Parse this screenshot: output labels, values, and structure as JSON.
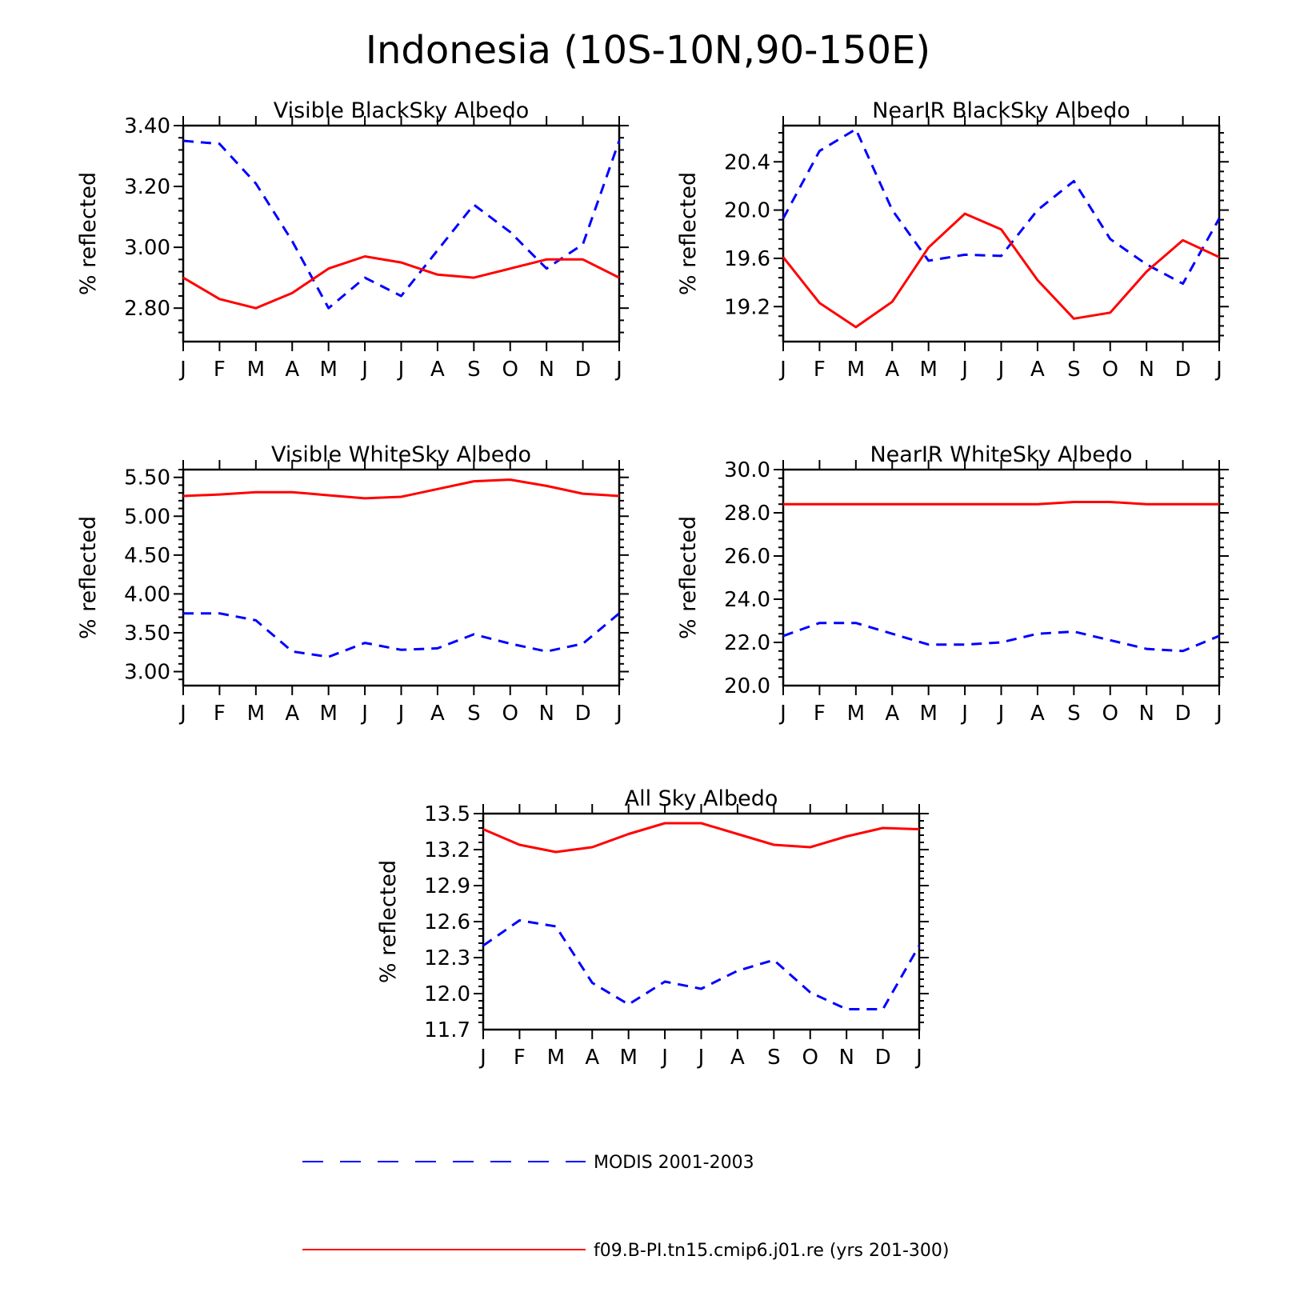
{
  "title": "Indonesia (10S-10N,90-150E)",
  "colors": {
    "modis": "#0000ff",
    "model": "#ff0000",
    "axis": "#000000"
  },
  "months": [
    "J",
    "F",
    "M",
    "A",
    "M",
    "J",
    "J",
    "A",
    "S",
    "O",
    "N",
    "D",
    "J"
  ],
  "ylabel": "% reflected",
  "legend": {
    "modis_label": "MODIS 2001-2003",
    "model_label": "f09.B-PI.tn15.cmip6.j01.re (yrs 201-300)"
  },
  "chart_data": [
    {
      "type": "line",
      "title": "Visible BlackSky Albedo",
      "ylabel": "% reflected",
      "ylim": [
        2.69,
        3.4
      ],
      "yticks": [
        "2.80",
        "3.00",
        "3.20",
        "3.40"
      ],
      "categories": [
        "J",
        "F",
        "M",
        "A",
        "M",
        "J",
        "J",
        "A",
        "S",
        "O",
        "N",
        "D",
        "J"
      ],
      "series": [
        {
          "name": "MODIS 2001-2003",
          "style": "dashed",
          "color": "#0000ff",
          "values": [
            3.35,
            3.34,
            3.21,
            3.02,
            2.8,
            2.9,
            2.84,
            2.99,
            3.14,
            3.05,
            2.93,
            3.01,
            3.35
          ]
        },
        {
          "name": "f09.B-PI.tn15.cmip6.j01.re (yrs 201-300)",
          "style": "solid",
          "color": "#ff0000",
          "values": [
            2.9,
            2.83,
            2.8,
            2.85,
            2.93,
            2.97,
            2.95,
            2.91,
            2.9,
            2.93,
            2.96,
            2.96,
            2.9
          ]
        }
      ]
    },
    {
      "type": "line",
      "title": "NearIR BlackSky Albedo",
      "ylabel": "% reflected",
      "ylim": [
        18.91,
        20.7
      ],
      "yticks": [
        "19.2",
        "19.6",
        "20.0",
        "20.4"
      ],
      "categories": [
        "J",
        "F",
        "M",
        "A",
        "M",
        "J",
        "J",
        "A",
        "S",
        "O",
        "N",
        "D",
        "J"
      ],
      "series": [
        {
          "name": "MODIS 2001-2003",
          "style": "dashed",
          "color": "#0000ff",
          "values": [
            19.93,
            20.49,
            20.67,
            20.0,
            19.58,
            19.63,
            19.62,
            20.0,
            20.24,
            19.76,
            19.55,
            19.39,
            19.93
          ]
        },
        {
          "name": "f09.B-PI.tn15.cmip6.j01.re (yrs 201-300)",
          "style": "solid",
          "color": "#ff0000",
          "values": [
            19.61,
            19.23,
            19.03,
            19.24,
            19.69,
            19.97,
            19.84,
            19.42,
            19.1,
            19.15,
            19.49,
            19.75,
            19.61
          ]
        }
      ]
    },
    {
      "type": "line",
      "title": "Visible WhiteSky Albedo",
      "ylabel": "% reflected",
      "ylim": [
        2.82,
        5.6
      ],
      "yticks": [
        "3.00",
        "3.50",
        "4.00",
        "4.50",
        "5.00",
        "5.50"
      ],
      "categories": [
        "J",
        "F",
        "M",
        "A",
        "M",
        "J",
        "J",
        "A",
        "S",
        "O",
        "N",
        "D",
        "J"
      ],
      "series": [
        {
          "name": "MODIS 2001-2003",
          "style": "dashed",
          "color": "#0000ff",
          "values": [
            3.75,
            3.75,
            3.66,
            3.26,
            3.19,
            3.37,
            3.28,
            3.3,
            3.48,
            3.36,
            3.26,
            3.36,
            3.75
          ]
        },
        {
          "name": "f09.B-PI.tn15.cmip6.j01.re (yrs 201-300)",
          "style": "solid",
          "color": "#ff0000",
          "values": [
            5.26,
            5.28,
            5.31,
            5.31,
            5.27,
            5.23,
            5.25,
            5.35,
            5.45,
            5.47,
            5.39,
            5.29,
            5.26
          ]
        }
      ]
    },
    {
      "type": "line",
      "title": "NearIR WhiteSky Albedo",
      "ylabel": "% reflected",
      "ylim": [
        20.0,
        30.0
      ],
      "yticks": [
        "20.0",
        "22.0",
        "24.0",
        "26.0",
        "28.0",
        "30.0"
      ],
      "categories": [
        "J",
        "F",
        "M",
        "A",
        "M",
        "J",
        "J",
        "A",
        "S",
        "O",
        "N",
        "D",
        "J"
      ],
      "series": [
        {
          "name": "MODIS 2001-2003",
          "style": "dashed",
          "color": "#0000ff",
          "values": [
            22.3,
            22.9,
            22.9,
            22.4,
            21.9,
            21.9,
            22.0,
            22.4,
            22.5,
            22.1,
            21.7,
            21.6,
            22.3
          ]
        },
        {
          "name": "f09.B-PI.tn15.cmip6.j01.re (yrs 201-300)",
          "style": "solid",
          "color": "#ff0000",
          "values": [
            28.4,
            28.4,
            28.4,
            28.4,
            28.4,
            28.4,
            28.4,
            28.4,
            28.5,
            28.5,
            28.4,
            28.4,
            28.4
          ]
        }
      ]
    },
    {
      "type": "line",
      "title": "All Sky Albedo",
      "ylabel": "% reflected",
      "ylim": [
        11.7,
        13.5
      ],
      "yticks": [
        "11.7",
        "12.0",
        "12.3",
        "12.6",
        "12.9",
        "13.2",
        "13.5"
      ],
      "categories": [
        "J",
        "F",
        "M",
        "A",
        "M",
        "J",
        "J",
        "A",
        "S",
        "O",
        "N",
        "D",
        "J"
      ],
      "series": [
        {
          "name": "MODIS 2001-2003",
          "style": "dashed",
          "color": "#0000ff",
          "values": [
            12.4,
            12.61,
            12.56,
            12.09,
            11.91,
            12.1,
            12.04,
            12.19,
            12.28,
            12.01,
            11.87,
            11.87,
            12.4
          ]
        },
        {
          "name": "f09.B-PI.tn15.cmip6.j01.re (yrs 201-300)",
          "style": "solid",
          "color": "#ff0000",
          "values": [
            13.37,
            13.24,
            13.18,
            13.22,
            13.33,
            13.42,
            13.42,
            13.33,
            13.24,
            13.22,
            13.31,
            13.38,
            13.37
          ]
        }
      ]
    }
  ]
}
